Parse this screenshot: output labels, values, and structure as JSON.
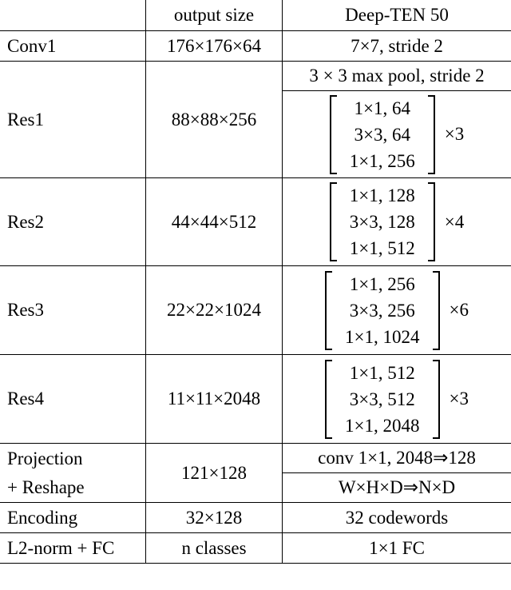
{
  "table": {
    "header": [
      "output size",
      "Deep-TEN 50"
    ],
    "rows": [
      {
        "layer": [
          "Conv1"
        ],
        "output": "176×176×64",
        "config": [
          "7×7, stride 2"
        ]
      },
      {
        "layer": [
          "Res1"
        ],
        "output": "88×88×256",
        "config": [
          "3 × 3 max pool, stride 2"
        ],
        "block": [
          "1×1, 64",
          "3×3, 64",
          "1×1, 256"
        ],
        "repeat": "×3"
      },
      {
        "layer": [
          "Res2"
        ],
        "output": "44×44×512",
        "block": [
          "1×1, 128",
          "3×3, 128",
          "1×1, 512"
        ],
        "repeat": "×4"
      },
      {
        "layer": [
          "Res3"
        ],
        "output": "22×22×1024",
        "block": [
          "1×1, 256",
          "3×3, 256",
          "1×1, 1024"
        ],
        "repeat": "×6"
      },
      {
        "layer": [
          "Res4"
        ],
        "output": "11×11×2048",
        "block": [
          "1×1, 512",
          "3×3, 512",
          "1×1, 2048"
        ],
        "repeat": "×3"
      },
      {
        "layer": [
          "Projection",
          "+ Reshape"
        ],
        "output": "121×128",
        "config": [
          "conv 1×1, 2048⇒128",
          "W×H×D⇒N×D"
        ]
      },
      {
        "layer": [
          "Encoding"
        ],
        "output": "32×128",
        "config": [
          "32 codewords"
        ]
      },
      {
        "layer": [
          "L2-norm + FC"
        ],
        "output": "n classes",
        "config": [
          "1×1 FC"
        ]
      }
    ]
  }
}
